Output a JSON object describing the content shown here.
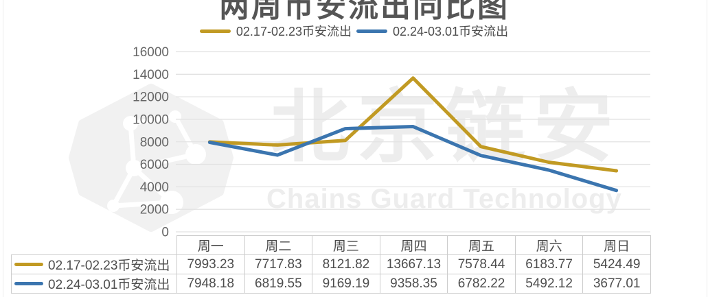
{
  "title": "两周币安流出同比图",
  "watermark": {
    "cn": "北京链安",
    "en": "Chains Guard Technology"
  },
  "colors": {
    "series_gold": "#C19A23",
    "series_blue": "#3B75AF",
    "gridline": "#e2e2e2",
    "axis_text": "#666666",
    "table_border": "#cccccc",
    "text": "#4d4d4d"
  },
  "chart_data": {
    "type": "line",
    "categories": [
      "周一",
      "周二",
      "周三",
      "周四",
      "周五",
      "周六",
      "周日"
    ],
    "series": [
      {
        "name": "02.17-02.23币安流出",
        "color": "#C19A23",
        "values": [
          7993.23,
          7717.83,
          8121.82,
          13667.13,
          7578.44,
          6183.77,
          5424.49
        ]
      },
      {
        "name": "02.24-03.01币安流出",
        "color": "#3B75AF",
        "values": [
          7948.18,
          6819.55,
          9169.19,
          9358.35,
          6782.22,
          5492.12,
          3677.01
        ]
      }
    ],
    "ylim": [
      0,
      16000
    ],
    "ytick_step": 2000,
    "yticks": [
      0,
      2000,
      4000,
      6000,
      8000,
      10000,
      12000,
      14000,
      16000
    ],
    "grid": true,
    "legend_position": "top",
    "data_table_shown": true
  }
}
